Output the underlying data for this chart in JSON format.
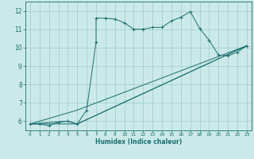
{
  "background_color": "#cce9e9",
  "grid_color": "#99cccc",
  "line_color": "#1a6e6e",
  "xlabel": "Humidex (Indice chaleur)",
  "xlim": [
    -0.5,
    23.5
  ],
  "ylim": [
    5.5,
    12.5
  ],
  "xticks": [
    0,
    1,
    2,
    3,
    4,
    5,
    6,
    7,
    8,
    9,
    10,
    11,
    12,
    13,
    14,
    15,
    16,
    17,
    18,
    19,
    20,
    21,
    22,
    23
  ],
  "yticks": [
    6,
    7,
    8,
    9,
    10,
    11,
    12
  ],
  "main_series": [
    [
      0,
      5.85
    ],
    [
      1,
      5.85
    ],
    [
      2,
      5.75
    ],
    [
      3,
      5.95
    ],
    [
      4,
      6.0
    ],
    [
      5,
      5.85
    ],
    [
      6,
      6.6
    ],
    [
      7,
      10.3
    ],
    [
      7,
      11.6
    ],
    [
      8,
      11.6
    ],
    [
      9,
      11.55
    ],
    [
      10,
      11.35
    ],
    [
      11,
      11.0
    ],
    [
      12,
      11.0
    ],
    [
      13,
      11.1
    ],
    [
      14,
      11.1
    ],
    [
      15,
      11.45
    ],
    [
      16,
      11.65
    ],
    [
      17,
      11.95
    ],
    [
      18,
      11.05
    ],
    [
      19,
      10.4
    ],
    [
      20,
      9.6
    ],
    [
      21,
      9.55
    ],
    [
      22,
      9.75
    ],
    [
      23,
      10.1
    ]
  ],
  "straight_lines": [
    [
      [
        0,
        5.85
      ],
      [
        5,
        5.85
      ],
      [
        23,
        10.1
      ]
    ],
    [
      [
        0,
        5.85
      ],
      [
        4,
        6.0
      ],
      [
        5,
        5.85
      ],
      [
        23,
        10.1
      ]
    ],
    [
      [
        0,
        5.85
      ],
      [
        5,
        6.6
      ],
      [
        23,
        10.1
      ]
    ]
  ]
}
